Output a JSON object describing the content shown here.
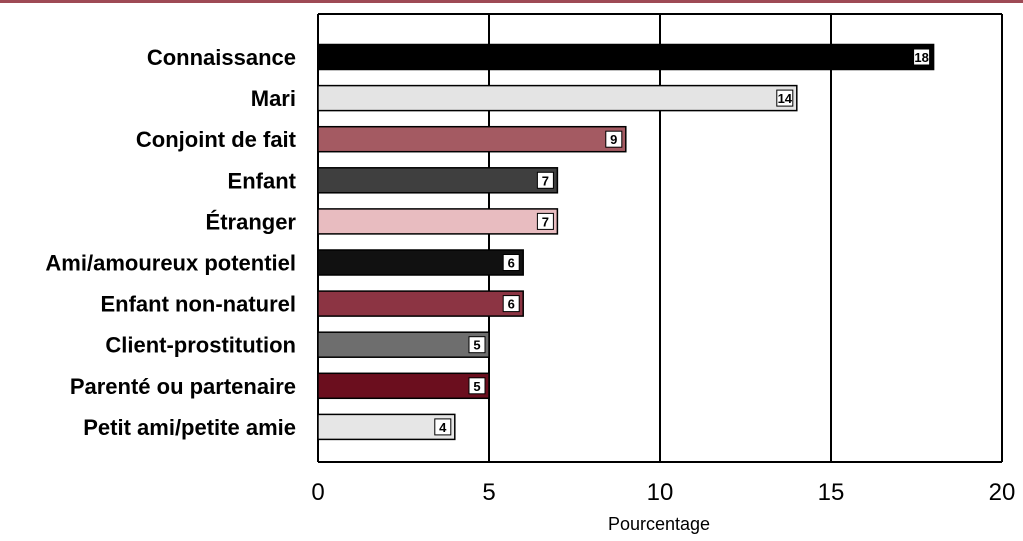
{
  "chart_data": {
    "type": "bar",
    "orientation": "horizontal",
    "title": "",
    "xlabel": "Pourcentage",
    "ylabel": "",
    "xlim": [
      0,
      20
    ],
    "xticks": [
      0,
      5,
      10,
      15,
      20
    ],
    "grid": true,
    "legend": "none",
    "categories": [
      "Connaissance",
      "Mari",
      "Conjoint de fait",
      "Enfant",
      "Étranger",
      "Ami/amoureux potentiel",
      "Enfant non-naturel",
      "Client-prostitution",
      "Parenté ou partenaire",
      "Petit ami/petite amie"
    ],
    "values": [
      18,
      14,
      9,
      7,
      7,
      6,
      6,
      5,
      5,
      4
    ],
    "value_labels": [
      "18",
      "14",
      "9",
      "7",
      "7",
      "6",
      "6",
      "5",
      "5",
      "4"
    ],
    "colors": [
      "#000000",
      "#e4e4e4",
      "#a45a62",
      "#3f3f3f",
      "#e8bcc0",
      "#111111",
      "#8c3443",
      "#6e6e6e",
      "#6b0e1e",
      "#e6e6e6"
    ]
  },
  "colors": {
    "top_rule": "#9e4a55",
    "axis": "#000000",
    "grid": "#000000"
  }
}
